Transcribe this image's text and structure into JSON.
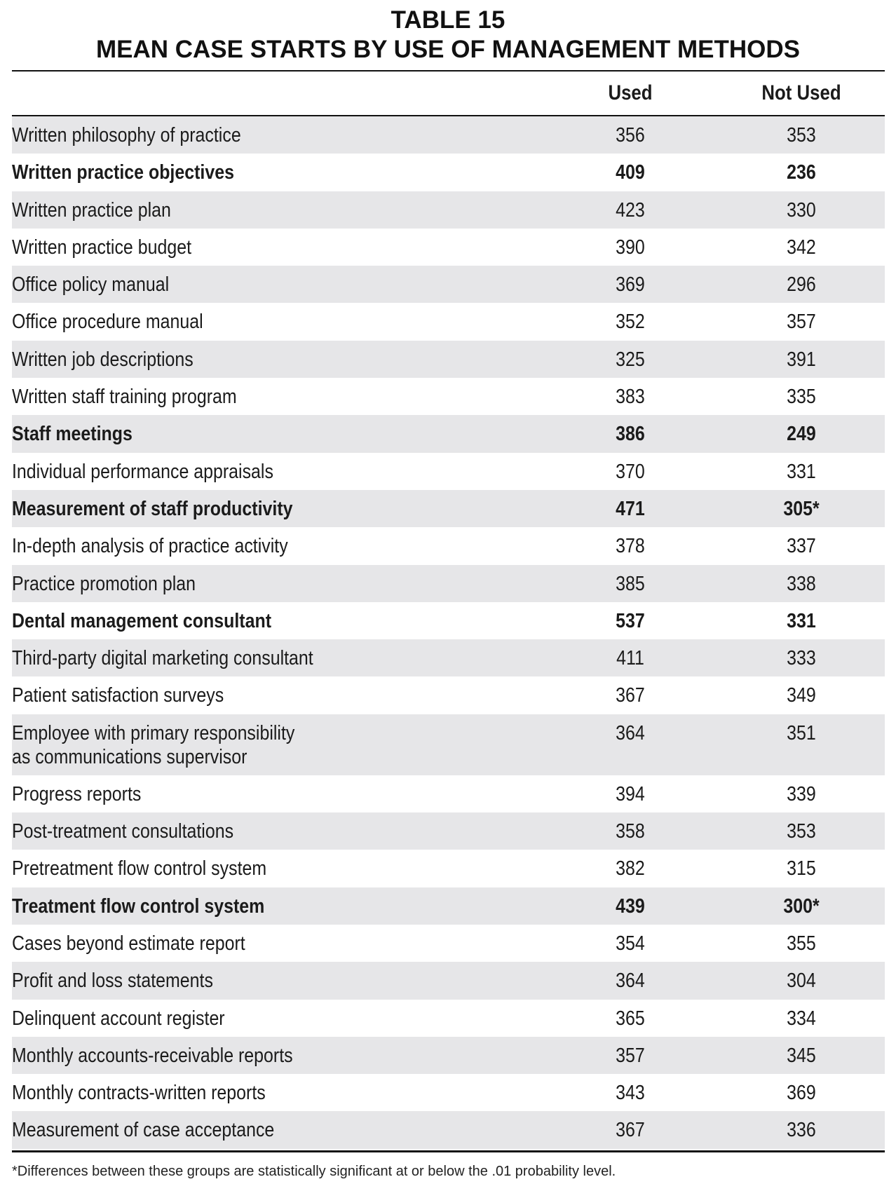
{
  "title": {
    "line1": "TABLE 15",
    "line2": "MEAN CASE STARTS BY USE OF MANAGEMENT METHODS"
  },
  "columns": {
    "used": "Used",
    "not_used": "Not Used"
  },
  "rows": [
    {
      "label": "Written philosophy of practice",
      "used": "356",
      "not_used": "353",
      "bold": false
    },
    {
      "label": "Written practice objectives",
      "used": "409",
      "not_used": "236",
      "bold": true
    },
    {
      "label": "Written practice plan",
      "used": "423",
      "not_used": "330",
      "bold": false
    },
    {
      "label": "Written practice budget",
      "used": "390",
      "not_used": "342",
      "bold": false
    },
    {
      "label": "Office policy manual",
      "used": "369",
      "not_used": "296",
      "bold": false
    },
    {
      "label": "Office procedure manual",
      "used": "352",
      "not_used": "357",
      "bold": false
    },
    {
      "label": "Written job descriptions",
      "used": "325",
      "not_used": "391",
      "bold": false
    },
    {
      "label": "Written staff training program",
      "used": "383",
      "not_used": "335",
      "bold": false
    },
    {
      "label": "Staff meetings",
      "used": "386",
      "not_used": "249",
      "bold": true
    },
    {
      "label": "Individual performance appraisals",
      "used": "370",
      "not_used": "331",
      "bold": false
    },
    {
      "label": "Measurement of staff productivity",
      "used": "471",
      "not_used": "305*",
      "bold": true
    },
    {
      "label": "In-depth analysis of practice activity",
      "used": "378",
      "not_used": "337",
      "bold": false
    },
    {
      "label": "Practice promotion plan",
      "used": "385",
      "not_used": "338",
      "bold": false
    },
    {
      "label": "Dental management consultant",
      "used": "537",
      "not_used": "331",
      "bold": true
    },
    {
      "label": "Third-party digital marketing consultant",
      "used": "411",
      "not_used": "333",
      "bold": false
    },
    {
      "label": "Patient satisfaction surveys",
      "used": "367",
      "not_used": "349",
      "bold": false
    },
    {
      "label": "Employee with primary responsibility\nas communications supervisor",
      "used": "364",
      "not_used": "351",
      "bold": false
    },
    {
      "label": "Progress reports",
      "used": "394",
      "not_used": "339",
      "bold": false
    },
    {
      "label": "Post-treatment consultations",
      "used": "358",
      "not_used": "353",
      "bold": false
    },
    {
      "label": "Pretreatment flow control system",
      "used": "382",
      "not_used": "315",
      "bold": false
    },
    {
      "label": "Treatment flow control system",
      "used": "439",
      "not_used": "300*",
      "bold": true
    },
    {
      "label": "Cases beyond estimate report",
      "used": "354",
      "not_used": "355",
      "bold": false
    },
    {
      "label": "Profit and loss statements",
      "used": "364",
      "not_used": "304",
      "bold": false
    },
    {
      "label": "Delinquent account register",
      "used": "365",
      "not_used": "334",
      "bold": false
    },
    {
      "label": "Monthly accounts-receivable reports",
      "used": "357",
      "not_used": "345",
      "bold": false
    },
    {
      "label": "Monthly contracts-written reports",
      "used": "343",
      "not_used": "369",
      "bold": false
    },
    {
      "label": "Measurement of case acceptance",
      "used": "367",
      "not_used": "336",
      "bold": false
    }
  ],
  "footnote": "*Differences between these groups are statistically significant at or below the .01 probability level.",
  "colors": {
    "shade": "#e6e6e8",
    "rule": "#111111"
  }
}
